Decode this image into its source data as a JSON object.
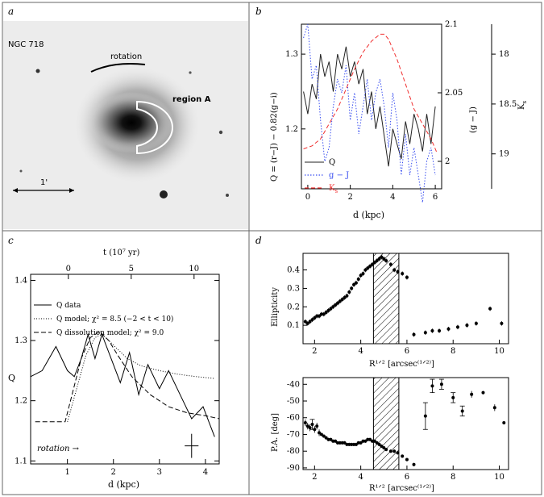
{
  "panels": {
    "a": {
      "letter": "a",
      "galaxy_label": "NGC 718",
      "rotation_label": "rotation",
      "region_label": "region A",
      "scale_label": "1'"
    },
    "b": {
      "letter": "b",
      "ylabel_left": "Q = (r−J) − 0.82(g−i)",
      "ylabel_mid": "(g − J)",
      "ylabel_right": "K",
      "ylabel_right_sub": "s",
      "xlabel": "d (kpc)",
      "legend": [
        {
          "label": "Q",
          "sub": ""
        },
        {
          "label": "g − J",
          "sub": ""
        },
        {
          "label": "K",
          "sub": "s"
        }
      ]
    },
    "c": {
      "letter": "c",
      "xlabel": "d (kpc)",
      "ylabel": "Q",
      "top_xlabel": "t (10⁷ yr)",
      "legend": [
        "Q data",
        "Q model; χ² = 8.5 (−2 < t < 10)",
        "Q dissolution model; χ² = 9.0"
      ],
      "rotation_label": "rotation →"
    },
    "d": {
      "letter": "d",
      "top_ylabel": "Ellipticity",
      "bottom_ylabel": "P.A. [deg]",
      "xlabel": "R¹ᐟ² [arcsec⁽¹ᐟ²⁾]"
    }
  },
  "chart_data": [
    {
      "panel": "b",
      "type": "line",
      "xlim": [
        -0.3,
        6.3
      ],
      "xticks": [
        0,
        2,
        4,
        6
      ],
      "axes": {
        "left": {
          "ylim": [
            1.12,
            1.34
          ],
          "ticks": [
            1.2,
            1.3
          ]
        },
        "mid": {
          "ylim": [
            1.98,
            2.1
          ],
          "ticks": [
            2,
            2.05,
            2.1
          ]
        },
        "right": {
          "ylim": [
            19.35,
            17.7
          ],
          "ticks": [
            18,
            18.5,
            19
          ]
        }
      },
      "colors": {
        "Q": "#222222",
        "gJ": "#3a4ff0",
        "Ks": "#f03030"
      },
      "series": [
        {
          "name": "Q",
          "axis": "left",
          "style": "solid",
          "x": [
            -0.2,
            0.0,
            0.2,
            0.4,
            0.6,
            0.8,
            1.0,
            1.2,
            1.4,
            1.6,
            1.8,
            2.0,
            2.2,
            2.4,
            2.6,
            2.8,
            3.0,
            3.2,
            3.4,
            3.6,
            3.8,
            4.0,
            4.2,
            4.4,
            4.6,
            4.8,
            5.0,
            5.2,
            5.4,
            5.6,
            5.8,
            6.0
          ],
          "y": [
            1.25,
            1.22,
            1.26,
            1.24,
            1.3,
            1.27,
            1.29,
            1.25,
            1.3,
            1.28,
            1.31,
            1.27,
            1.29,
            1.26,
            1.28,
            1.22,
            1.25,
            1.2,
            1.23,
            1.19,
            1.15,
            1.2,
            1.18,
            1.16,
            1.21,
            1.18,
            1.22,
            1.2,
            1.17,
            1.22,
            1.18,
            1.23
          ]
        },
        {
          "name": "g − J",
          "axis": "mid",
          "style": "dotted",
          "x": [
            -0.2,
            0.0,
            0.2,
            0.4,
            0.6,
            0.8,
            1.0,
            1.2,
            1.4,
            1.6,
            1.8,
            2.0,
            2.2,
            2.4,
            2.6,
            2.8,
            3.0,
            3.2,
            3.4,
            3.6,
            3.8,
            4.0,
            4.2,
            4.4,
            4.6,
            4.8,
            5.0,
            5.2,
            5.4,
            5.6,
            5.8,
            6.0
          ],
          "y": [
            2.09,
            2.1,
            2.06,
            2.07,
            2.03,
            2.0,
            2.01,
            2.04,
            2.06,
            2.05,
            2.07,
            2.03,
            2.05,
            2.02,
            2.04,
            2.06,
            2.03,
            2.05,
            2.06,
            2.04,
            2.01,
            2.05,
            2.03,
            1.99,
            2.02,
            1.99,
            2.01,
            1.99,
            1.97,
            2.0,
            2.01,
            1.99
          ]
        },
        {
          "name": "Ks",
          "axis": "right",
          "style": "dashed",
          "x": [
            -0.2,
            0.2,
            0.6,
            1.0,
            1.4,
            1.8,
            2.2,
            2.6,
            3.0,
            3.4,
            3.6,
            3.8,
            4.2,
            4.6,
            5.0,
            5.4,
            5.8,
            6.1
          ],
          "y": [
            18.95,
            18.92,
            18.85,
            18.7,
            18.55,
            18.35,
            18.15,
            17.98,
            17.87,
            17.8,
            17.8,
            17.85,
            18.05,
            18.3,
            18.55,
            18.7,
            18.85,
            19.0
          ]
        }
      ]
    },
    {
      "panel": "c",
      "type": "line",
      "xlim": [
        0.2,
        4.3
      ],
      "ylim": [
        1.095,
        1.41
      ],
      "xticks": [
        1,
        2,
        3,
        4
      ],
      "yticks": [
        1.1,
        1.2,
        1.3,
        1.4
      ],
      "top_axis": {
        "lim": [
          -3.0,
          12.0
        ],
        "ticks": [
          0,
          5,
          10
        ]
      },
      "series": [
        {
          "name": "Q data",
          "style": "solid",
          "x": [
            0.2,
            0.45,
            0.75,
            1.0,
            1.15,
            1.3,
            1.45,
            1.6,
            1.75,
            1.95,
            2.15,
            2.35,
            2.55,
            2.75,
            3.0,
            3.2,
            3.45,
            3.7,
            3.95,
            4.2
          ],
          "y": [
            1.24,
            1.25,
            1.29,
            1.25,
            1.24,
            1.27,
            1.31,
            1.27,
            1.31,
            1.27,
            1.23,
            1.28,
            1.21,
            1.26,
            1.22,
            1.25,
            1.21,
            1.17,
            1.19,
            1.14
          ]
        },
        {
          "name": "Q model",
          "style": "dotted",
          "x": [
            1.0,
            1.2,
            1.4,
            1.6,
            1.75,
            1.9,
            2.1,
            2.3,
            2.6,
            3.0,
            3.4,
            3.8,
            4.2
          ],
          "y": [
            1.165,
            1.22,
            1.275,
            1.305,
            1.31,
            1.3,
            1.285,
            1.27,
            1.258,
            1.25,
            1.244,
            1.24,
            1.237
          ]
        },
        {
          "name": "Q dissolution model",
          "style": "dashed",
          "x": [
            0.3,
            0.7,
            0.95,
            1.1,
            1.3,
            1.5,
            1.7,
            1.9,
            2.1,
            2.4,
            2.8,
            3.2,
            3.6,
            4.0,
            4.3
          ],
          "y": [
            1.165,
            1.165,
            1.165,
            1.21,
            1.27,
            1.305,
            1.315,
            1.3,
            1.275,
            1.24,
            1.21,
            1.19,
            1.18,
            1.175,
            1.17
          ]
        }
      ],
      "errorbar": {
        "x": 3.7,
        "y": 1.125,
        "xerr": 0.15,
        "yerr": 0.02
      }
    },
    {
      "panel": "d-top",
      "type": "scatter",
      "xlim": [
        1.5,
        10.4
      ],
      "ylim": [
        0.0,
        0.49
      ],
      "xticks": [
        2,
        4,
        6,
        8,
        10
      ],
      "yticks": [
        0.1,
        0.2,
        0.3,
        0.4
      ],
      "hatch": [
        4.55,
        5.65
      ],
      "x": [
        1.6,
        1.7,
        1.8,
        1.9,
        2.0,
        2.1,
        2.2,
        2.3,
        2.4,
        2.5,
        2.6,
        2.7,
        2.8,
        2.9,
        3.0,
        3.1,
        3.2,
        3.3,
        3.4,
        3.5,
        3.6,
        3.7,
        3.8,
        3.9,
        4.0,
        4.1,
        4.2,
        4.3,
        4.4,
        4.5,
        4.6,
        4.7,
        4.8,
        4.9,
        5.0,
        5.1,
        5.3,
        5.45,
        5.6,
        5.8,
        6.0,
        6.3,
        6.8,
        7.1,
        7.4,
        7.8,
        8.2,
        8.6,
        9.0,
        9.6,
        10.1
      ],
      "y": [
        0.12,
        0.11,
        0.12,
        0.13,
        0.14,
        0.15,
        0.15,
        0.16,
        0.16,
        0.17,
        0.18,
        0.19,
        0.2,
        0.21,
        0.22,
        0.23,
        0.24,
        0.25,
        0.26,
        0.28,
        0.3,
        0.32,
        0.33,
        0.35,
        0.37,
        0.38,
        0.4,
        0.41,
        0.42,
        0.43,
        0.44,
        0.45,
        0.46,
        0.47,
        0.46,
        0.45,
        0.43,
        0.4,
        0.39,
        0.38,
        0.36,
        0.05,
        0.06,
        0.07,
        0.07,
        0.08,
        0.09,
        0.1,
        0.11,
        0.19,
        0.11
      ],
      "yerr": 0.012
    },
    {
      "panel": "d-bottom",
      "type": "scatter",
      "xlim": [
        1.5,
        10.4
      ],
      "ylim": [
        -91,
        -36
      ],
      "xticks": [
        2,
        4,
        6,
        8,
        10
      ],
      "yticks": [
        -90,
        -80,
        -70,
        -60,
        -50,
        -40
      ],
      "hatch": [
        4.55,
        5.65
      ],
      "x": [
        1.6,
        1.7,
        1.8,
        1.9,
        2.0,
        2.1,
        2.2,
        2.3,
        2.4,
        2.5,
        2.6,
        2.7,
        2.8,
        2.9,
        3.0,
        3.1,
        3.2,
        3.3,
        3.4,
        3.5,
        3.6,
        3.7,
        3.8,
        3.9,
        4.0,
        4.1,
        4.2,
        4.3,
        4.4,
        4.5,
        4.6,
        4.7,
        4.8,
        4.9,
        5.0,
        5.1,
        5.3,
        5.45,
        5.6,
        5.8,
        6.0,
        6.3,
        6.8,
        7.1,
        7.5,
        8.0,
        8.4,
        8.8,
        9.3,
        9.8,
        10.2
      ],
      "y": [
        -63,
        -65,
        -66,
        -64,
        -67,
        -65,
        -69,
        -70,
        -71,
        -72,
        -73,
        -73,
        -74,
        -74,
        -75,
        -75,
        -75,
        -75,
        -76,
        -76,
        -76,
        -76,
        -76,
        -75,
        -75,
        -74,
        -74,
        -73,
        -73,
        -74,
        -74,
        -75,
        -76,
        -77,
        -78,
        -79,
        -80,
        -80,
        -81,
        -83,
        -85,
        -88,
        -59,
        -41,
        -40,
        -48,
        -56,
        -46,
        -45,
        -54,
        -63
      ],
      "yerr": [
        2,
        2,
        2,
        3,
        2,
        2,
        2,
        1,
        1,
        1,
        1,
        1,
        1,
        1,
        1,
        1,
        1,
        1,
        1,
        1,
        1,
        1,
        1,
        1,
        1,
        1,
        1,
        1,
        1,
        1,
        1,
        1,
        1,
        1,
        1,
        1,
        1,
        1,
        1,
        1,
        1,
        1,
        8,
        4,
        3,
        3,
        3,
        2,
        1,
        2,
        1
      ]
    }
  ]
}
